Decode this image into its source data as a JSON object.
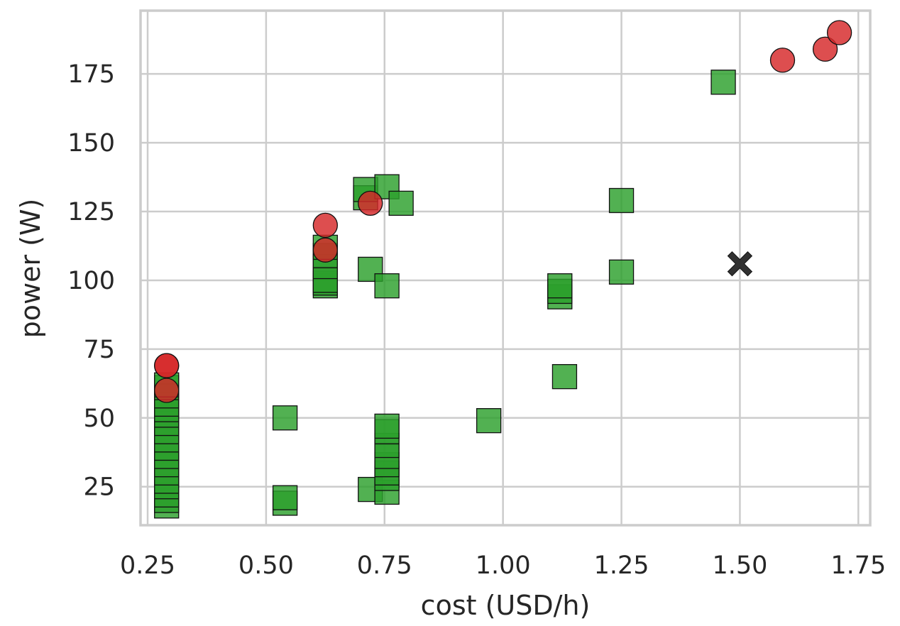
{
  "chart_data": {
    "type": "scatter",
    "xlabel": "cost (USD/h)",
    "ylabel": "power (W)",
    "xlim": [
      0.235,
      1.775
    ],
    "ylim": [
      11,
      198
    ],
    "xticks": [
      {
        "value": 0.25,
        "label": "0.25"
      },
      {
        "value": 0.5,
        "label": "0.50"
      },
      {
        "value": 0.75,
        "label": "0.75"
      },
      {
        "value": 1.0,
        "label": "1.00"
      },
      {
        "value": 1.25,
        "label": "1.25"
      },
      {
        "value": 1.5,
        "label": "1.50"
      },
      {
        "value": 1.75,
        "label": "1.75"
      }
    ],
    "yticks": [
      {
        "value": 25,
        "label": "25"
      },
      {
        "value": 50,
        "label": "50"
      },
      {
        "value": 75,
        "label": "75"
      },
      {
        "value": 100,
        "label": "100"
      },
      {
        "value": 125,
        "label": "125"
      },
      {
        "value": 150,
        "label": "150"
      },
      {
        "value": 175,
        "label": "175"
      }
    ],
    "grid": true,
    "legend": "none",
    "series": [
      {
        "marker": "square",
        "color": "#2ca02c",
        "points": [
          [
            0.29,
            18
          ],
          [
            0.29,
            20
          ],
          [
            0.29,
            22
          ],
          [
            0.29,
            25
          ],
          [
            0.29,
            27
          ],
          [
            0.29,
            30
          ],
          [
            0.29,
            33
          ],
          [
            0.29,
            36
          ],
          [
            0.29,
            39
          ],
          [
            0.29,
            42
          ],
          [
            0.29,
            45
          ],
          [
            0.29,
            48
          ],
          [
            0.29,
            51
          ],
          [
            0.29,
            53
          ],
          [
            0.29,
            55
          ],
          [
            0.29,
            58
          ],
          [
            0.29,
            61
          ],
          [
            0.29,
            62
          ],
          [
            0.54,
            19
          ],
          [
            0.54,
            21
          ],
          [
            0.54,
            50
          ],
          [
            0.625,
            98
          ],
          [
            0.625,
            99
          ],
          [
            0.625,
            100
          ],
          [
            0.625,
            105
          ],
          [
            0.625,
            109
          ],
          [
            0.625,
            112
          ],
          [
            0.71,
            130
          ],
          [
            0.71,
            133
          ],
          [
            0.755,
            134
          ],
          [
            0.785,
            128
          ],
          [
            0.72,
            104
          ],
          [
            0.755,
            98
          ],
          [
            0.72,
            24
          ],
          [
            0.755,
            23
          ],
          [
            0.755,
            28
          ],
          [
            0.755,
            30
          ],
          [
            0.755,
            33
          ],
          [
            0.755,
            36
          ],
          [
            0.755,
            40
          ],
          [
            0.755,
            45
          ],
          [
            0.755,
            47
          ],
          [
            0.97,
            49
          ],
          [
            1.12,
            94
          ],
          [
            1.12,
            96
          ],
          [
            1.12,
            98
          ],
          [
            1.13,
            65
          ],
          [
            1.25,
            129
          ],
          [
            1.25,
            103
          ],
          [
            1.465,
            172
          ]
        ]
      },
      {
        "marker": "circle",
        "color": "#d62728",
        "points": [
          [
            0.29,
            69
          ],
          [
            0.29,
            69
          ],
          [
            0.29,
            60
          ],
          [
            0.625,
            120
          ],
          [
            0.625,
            111
          ],
          [
            0.72,
            128
          ],
          [
            1.59,
            180
          ],
          [
            1.68,
            184
          ],
          [
            1.71,
            190
          ]
        ]
      },
      {
        "marker": "x",
        "color": "#262626",
        "points": [
          [
            1.5,
            106
          ]
        ]
      }
    ]
  }
}
